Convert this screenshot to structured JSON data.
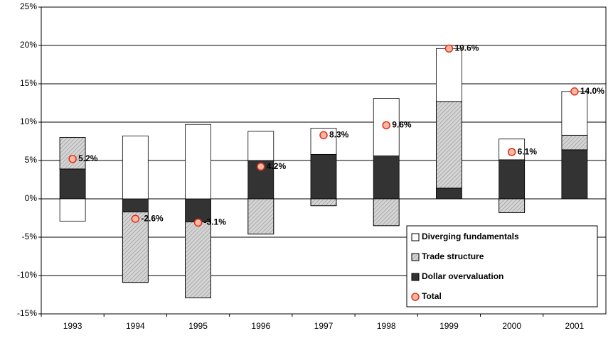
{
  "chart_data": {
    "type": "bar",
    "stacked": true,
    "categories": [
      "1993",
      "1994",
      "1995",
      "1996",
      "1997",
      "1998",
      "1999",
      "2000",
      "2001"
    ],
    "series": [
      {
        "name": "Diverging fundamentals",
        "type": "bar",
        "color": "#ffffff",
        "values": [
          -2.9,
          8.2,
          9.7,
          3.8,
          3.4,
          7.5,
          6.9,
          2.7,
          5.7
        ]
      },
      {
        "name": "Trade structure",
        "type": "bar",
        "color": "#d4d4d4",
        "values": [
          4.1,
          -9.2,
          -9.9,
          -4.6,
          -0.9,
          -3.5,
          11.3,
          -1.8,
          1.9
        ]
      },
      {
        "name": "Dollar overvaluation",
        "type": "bar",
        "color": "#333333",
        "values": [
          3.9,
          -1.7,
          -3.0,
          5.0,
          5.8,
          5.6,
          1.4,
          5.1,
          6.4
        ]
      },
      {
        "name": "Total",
        "type": "point",
        "color": "#f9b8a0",
        "values": [
          5.2,
          -2.6,
          -3.1,
          4.2,
          8.3,
          9.6,
          19.6,
          6.1,
          14.0
        ],
        "value_labels": [
          "5.2%",
          "-2.6%",
          "-3.1%",
          "4.2%",
          "8.3%",
          "9.6%",
          "19.6%",
          "6.1%",
          "14.0%"
        ]
      }
    ],
    "stack_order": [
      2,
      1,
      0
    ],
    "ylim": [
      -15,
      25
    ],
    "yticks": [
      {
        "value": -15,
        "label": "-15%"
      },
      {
        "value": -10,
        "label": "-10%"
      },
      {
        "value": -5,
        "label": "-5%"
      },
      {
        "value": 0,
        "label": "0%"
      },
      {
        "value": 5,
        "label": "5%"
      },
      {
        "value": 10,
        "label": "10%"
      },
      {
        "value": 15,
        "label": "15%"
      },
      {
        "value": 20,
        "label": "20%"
      },
      {
        "value": 25,
        "label": "25%"
      }
    ],
    "grid": true,
    "legend": "lower right"
  }
}
